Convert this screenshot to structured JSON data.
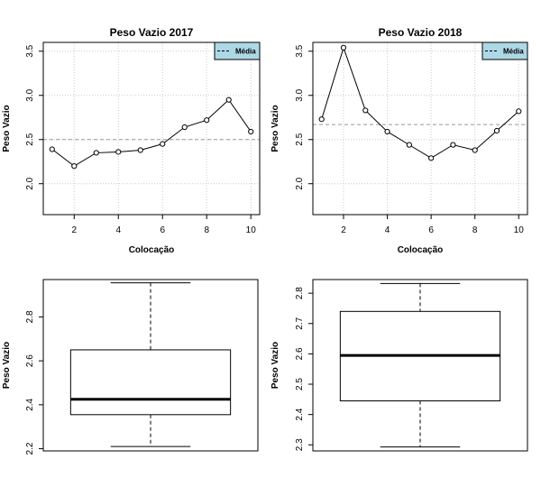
{
  "chart_data": [
    {
      "id": "line2017",
      "type": "line",
      "title": "Peso Vazio 2017",
      "xlabel": "Colocação",
      "ylabel": "Peso Vazio",
      "xlim": [
        0.6,
        10.4
      ],
      "ylim": [
        1.65,
        3.6
      ],
      "xticks": [
        2,
        4,
        6,
        8,
        10
      ],
      "yticks": [
        2.0,
        2.5,
        3.0,
        3.5
      ],
      "grid": true,
      "x": [
        1,
        2,
        3,
        4,
        5,
        6,
        7,
        8,
        9,
        10
      ],
      "series": [
        {
          "values": [
            2.39,
            2.2,
            2.35,
            2.36,
            2.38,
            2.45,
            2.64,
            2.72,
            2.95,
            2.59
          ],
          "color": "#000000"
        }
      ],
      "reference_line": {
        "label": "Média",
        "value": 2.5,
        "style": "dashed",
        "color": "#999999"
      },
      "legend": {
        "entries": [
          "Média"
        ],
        "position": "top-right",
        "background": "#add8e6"
      }
    },
    {
      "id": "line2018",
      "type": "line",
      "title": "Peso Vazio 2018",
      "xlabel": "Colocação",
      "ylabel": "Peso Vazio",
      "xlim": [
        0.6,
        10.4
      ],
      "ylim": [
        1.65,
        3.6
      ],
      "xticks": [
        2,
        4,
        6,
        8,
        10
      ],
      "yticks": [
        2.0,
        2.5,
        3.0,
        3.5
      ],
      "grid": true,
      "x": [
        1,
        2,
        3,
        4,
        5,
        6,
        7,
        8,
        9,
        10
      ],
      "series": [
        {
          "values": [
            2.73,
            3.54,
            2.83,
            2.59,
            2.44,
            2.29,
            2.44,
            2.38,
            2.6,
            2.82
          ],
          "color": "#000000"
        }
      ],
      "reference_line": {
        "label": "Média",
        "value": 2.67,
        "style": "dashed",
        "color": "#999999"
      },
      "legend": {
        "entries": [
          "Média"
        ],
        "position": "top-right",
        "background": "#add8e6"
      }
    },
    {
      "id": "box2017",
      "type": "boxplot",
      "ylabel": "Peso Vazio",
      "ylim": [
        2.19,
        2.97
      ],
      "yticks": [
        2.2,
        2.4,
        2.6,
        2.8
      ],
      "ytick_labels": [
        "2.2",
        "2.4",
        "2.6",
        "2.8"
      ],
      "stats": {
        "min": 2.21,
        "q1": 2.355,
        "median": 2.425,
        "q3": 2.65,
        "max": 2.955
      }
    },
    {
      "id": "box2018",
      "type": "boxplot",
      "ylabel": "Peso Vazio",
      "ylim": [
        2.28,
        2.845
      ],
      "yticks": [
        2.3,
        2.4,
        2.5,
        2.6,
        2.7,
        2.8
      ],
      "ytick_labels": [
        "2.3",
        "2.4",
        "2.5",
        "2.6",
        "2.7",
        "2.8"
      ],
      "stats": {
        "min": 2.293,
        "q1": 2.445,
        "median": 2.595,
        "q3": 2.74,
        "max": 2.832
      }
    }
  ]
}
